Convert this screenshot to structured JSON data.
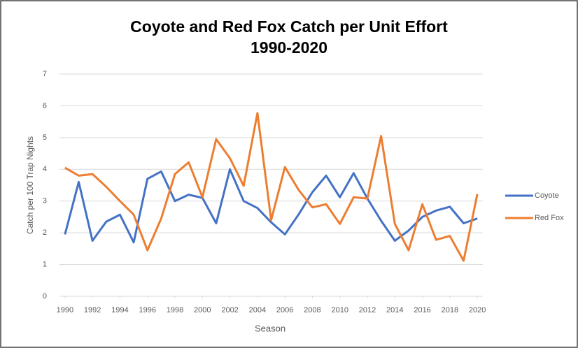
{
  "chart_data": {
    "type": "line",
    "title": "Coyote and Red Fox Catch per Unit Effort",
    "subtitle": "1990-2020",
    "x_label": "Season",
    "y_label": "Catch per 100 Trap Nights",
    "x": [
      1990,
      1991,
      1992,
      1993,
      1994,
      1995,
      1996,
      1997,
      1998,
      1999,
      2000,
      2001,
      2002,
      2003,
      2004,
      2005,
      2006,
      2007,
      2008,
      2009,
      2010,
      2011,
      2012,
      2013,
      2014,
      2015,
      2016,
      2017,
      2018,
      2019,
      2020
    ],
    "series": [
      {
        "name": "Coyote",
        "color": "#4472c4",
        "values": [
          1.95,
          3.6,
          1.75,
          2.35,
          2.57,
          1.7,
          3.7,
          3.93,
          3.0,
          3.2,
          3.1,
          2.3,
          4.0,
          3.0,
          2.78,
          2.33,
          1.95,
          2.58,
          3.28,
          3.8,
          3.12,
          3.88,
          3.08,
          2.38,
          1.75,
          2.07,
          2.5,
          2.7,
          2.82,
          2.3,
          2.45
        ]
      },
      {
        "name": "Red Fox",
        "color": "#ed7d31",
        "values": [
          4.05,
          3.8,
          3.85,
          3.45,
          3.0,
          2.57,
          1.45,
          2.45,
          3.85,
          4.22,
          3.12,
          4.95,
          4.35,
          3.48,
          5.77,
          2.4,
          4.07,
          3.35,
          2.8,
          2.9,
          2.28,
          3.12,
          3.08,
          5.05,
          2.28,
          1.45,
          2.9,
          1.78,
          1.9,
          1.12,
          3.22
        ]
      }
    ],
    "xlim": [
      1989.6,
      2020.4
    ],
    "xticks": [
      1990,
      1992,
      1994,
      1996,
      1998,
      2000,
      2002,
      2004,
      2006,
      2008,
      2010,
      2012,
      2014,
      2016,
      2018,
      2020
    ],
    "ylim": [
      0,
      7
    ],
    "yticks": [
      0,
      1,
      2,
      3,
      4,
      5,
      6,
      7
    ],
    "grid": true,
    "legend": "right"
  }
}
